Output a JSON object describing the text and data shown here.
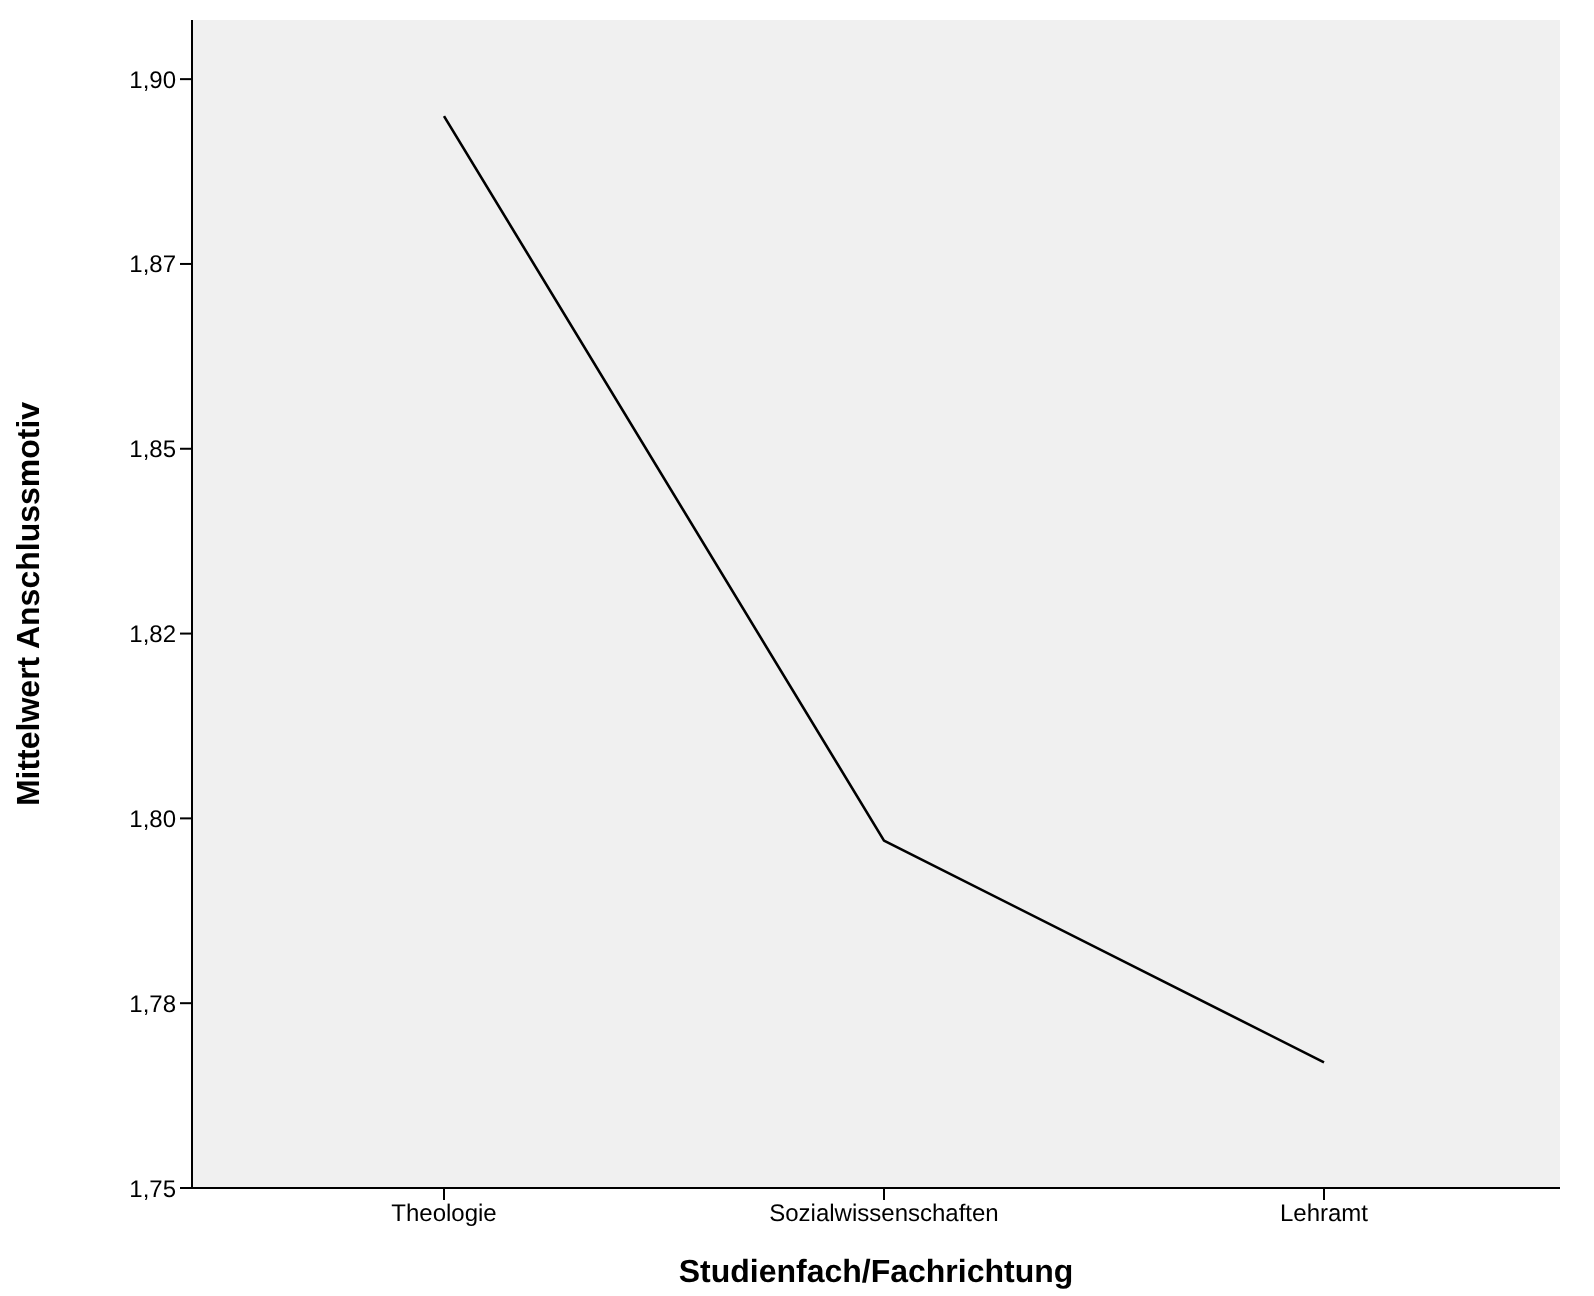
{
  "chart_data": {
    "type": "line",
    "xlabel": "Studienfach/Fachrichtung",
    "ylabel": "Mittelwert Anschlussmotiv",
    "categories": [
      "Theologie",
      "Sozialwissenschaften",
      "Lehramt"
    ],
    "series": [
      {
        "color": "#000000",
        "values": [
          1.895,
          1.797,
          1.767
        ]
      }
    ],
    "ylim": [
      1.75,
      1.908
    ],
    "yticks": [
      {
        "value": 1.75,
        "label": "1,75"
      },
      {
        "value": 1.775,
        "label": "1,78"
      },
      {
        "value": 1.8,
        "label": "1,80"
      },
      {
        "value": 1.825,
        "label": "1,82"
      },
      {
        "value": 1.85,
        "label": "1,85"
      },
      {
        "value": 1.875,
        "label": "1,87"
      },
      {
        "value": 1.9,
        "label": "1,90"
      }
    ],
    "grid": false,
    "marker": "none",
    "line_style": "solid",
    "legend": false
  }
}
